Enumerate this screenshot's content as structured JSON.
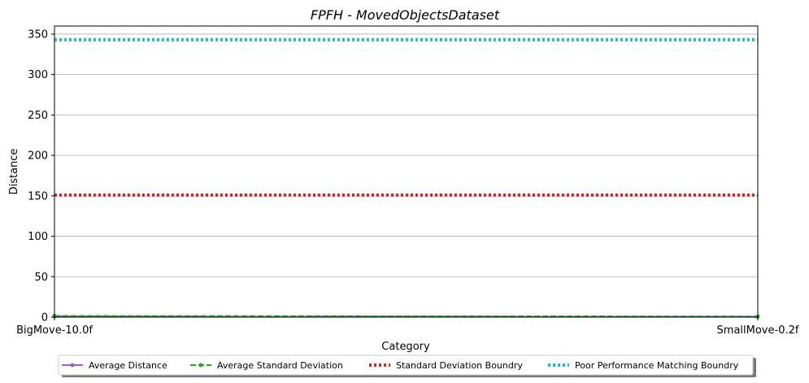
{
  "chart_data": {
    "type": "line",
    "title": "FPFH - MovedObjectsDataset",
    "xlabel": "Category",
    "ylabel": "Distance",
    "categories": [
      "BigMove-10.0f",
      "SmallMove-0.2f"
    ],
    "ylim": [
      0,
      360
    ],
    "yticks": [
      0,
      50,
      100,
      150,
      200,
      250,
      300,
      350
    ],
    "grid": "y",
    "legend_position": "bottom-center",
    "series": [
      {
        "name": "Average Distance",
        "values": [
          1.0,
          0.5
        ],
        "color": "#9467bd",
        "style": "solid-marker"
      },
      {
        "name": "Average Standard Deviation",
        "values": [
          1.5,
          0.8
        ],
        "color": "#2ca02c",
        "style": "dashed-marker"
      },
      {
        "name": "Standard Deviation Boundry",
        "values": [
          151,
          151
        ],
        "color": "#d62728",
        "style": "dotted"
      },
      {
        "name": "Poor Performance Matching Boundry",
        "values": [
          343,
          343
        ],
        "color": "#17becf",
        "style": "dotted"
      }
    ]
  }
}
